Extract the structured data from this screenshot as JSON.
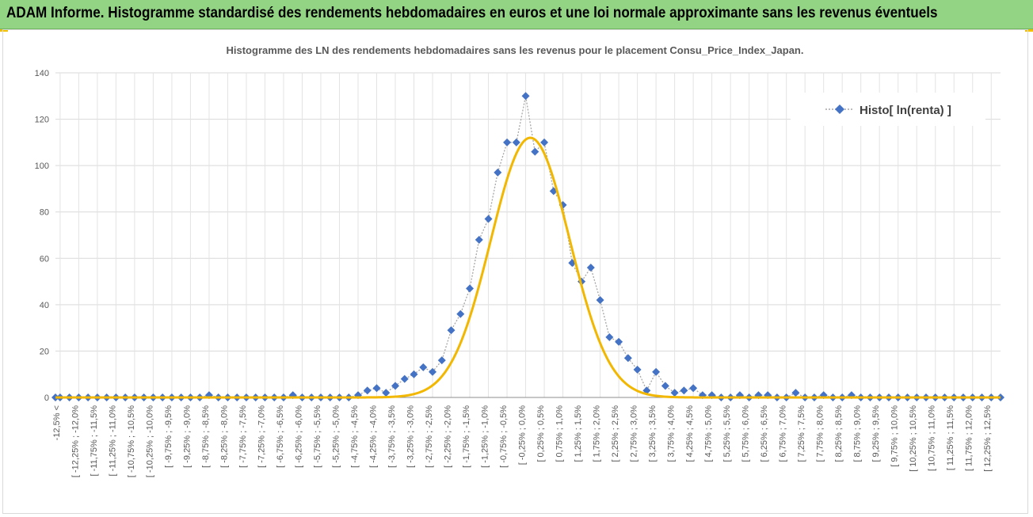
{
  "banner": {
    "title": "ADAM Informe. Histogramme standardisé des rendements hebdomadaires en euros et une loi normale approximante sans les revenus éventuels"
  },
  "chart_data": {
    "type": "scatter",
    "title": "Histogramme des LN des rendements hebdomadaires sans les revenus pour le placement Consu_Price_Index_Japan.",
    "ylim": [
      0,
      140
    ],
    "yticks": [
      0,
      20,
      40,
      60,
      80,
      100,
      120,
      140
    ],
    "grid": true,
    "legend_position": "top-right",
    "categories": [
      "-12,5% <",
      "[ -12,25% ; -12,0%",
      "[ -11,75% ; -11,5%",
      "[ -11,25% ; -11,0%",
      "[ -10,75% ; -10,5%",
      "[ -10,25% ; -10,0%",
      "[ -9,75% ; -9,5%",
      "[ -9,25% ; -9,0%",
      "[ -8,75% ; -8,5%",
      "[ -8,25% ; -8,0%",
      "[ -7,75% ; -7,5%",
      "[ -7,25% ; -7,0%",
      "[ -6,75% ; -6,5%",
      "[ -6,25% ; -6,0%",
      "[ -5,75% ; -5,5%",
      "[ -5,25% ; -5,0%",
      "[ -4,75% ; -4,5%",
      "[ -4,25% ; -4,0%",
      "[ -3,75% ; -3,5%",
      "[ -3,25% ; -3,0%",
      "[ -2,75% ; -2,5%",
      "[ -2,25% ; -2,0%",
      "[ -1,75% ; -1,5%",
      "[ -1,25% ; -1,0%",
      "[ -0,75% ; -0,5%",
      "[ -0,25% ; 0,0%",
      "[ 0,25% ; 0,5%",
      "[ 0,75% ; 1,0%",
      "[ 1,25% ; 1,5%",
      "[ 1,75% ; 2,0%",
      "[ 2,25% ; 2,5%",
      "[ 2,75% ; 3,0%",
      "[ 3,25% ; 3,5%",
      "[ 3,75% ; 4,0%",
      "[ 4,25% ; 4,5%",
      "[ 4,75% ; 5,0%",
      "[ 5,25% ; 5,5%",
      "[ 5,75% ; 6,0%",
      "[ 6,25% ; 6,5%",
      "[ 6,75% ; 7,0%",
      "[ 7,25% ; 7,5%",
      "[ 7,75% ; 8,0%",
      "[ 8,25% ; 8,5%",
      "[ 8,75% ; 9,0%",
      "[ 9,25% ; 9,5%",
      "[ 9,75% ; 10,0%",
      "[ 10,25% ; 10,5%",
      "[ 10,75% ; 11,0%",
      "[ 11,25% ; 11,5%",
      "[ 11,75% ; 12,0%",
      "[ 12,25% ; 12,5%"
    ],
    "histo": {
      "name": "Histo[ ln(renta) ]",
      "color": "#4472c4",
      "x": [
        -12.625,
        -12.5,
        -12.25,
        -12,
        -11.75,
        -11.5,
        -11.25,
        -11,
        -10.75,
        -10.5,
        -10.25,
        -10,
        -9.75,
        -9.5,
        -9.25,
        -9,
        -8.75,
        -8.5,
        -8.25,
        -8,
        -7.75,
        -7.5,
        -7.25,
        -7,
        -6.75,
        -6.5,
        -6.25,
        -6,
        -5.75,
        -5.5,
        -5.25,
        -5,
        -4.75,
        -4.5,
        -4.25,
        -4,
        -3.75,
        -3.5,
        -3.25,
        -3,
        -2.75,
        -2.5,
        -2.25,
        -2,
        -1.75,
        -1.5,
        -1.25,
        -1,
        -0.75,
        -0.5,
        -0.25,
        0,
        0.25,
        0.5,
        0.75,
        1,
        1.25,
        1.5,
        1.75,
        2,
        2.25,
        2.5,
        2.75,
        3,
        3.25,
        3.5,
        3.75,
        4,
        4.25,
        4.5,
        4.75,
        5,
        5.25,
        5.5,
        5.75,
        6,
        6.25,
        6.5,
        6.75,
        7,
        7.25,
        7.5,
        7.75,
        8,
        8.25,
        8.5,
        8.75,
        9,
        9.25,
        9.5,
        9.75,
        10,
        10.25,
        10.5,
        10.75,
        11,
        11.25,
        11.5,
        11.75,
        12,
        12.25,
        12.5,
        12.75
      ],
      "values": [
        0,
        0,
        0,
        0,
        0,
        0,
        0,
        0,
        0,
        0,
        0,
        0,
        0,
        0,
        0,
        0,
        0,
        1,
        0,
        0,
        0,
        0,
        0,
        0,
        0,
        0,
        1,
        0,
        0,
        0,
        0,
        0,
        0,
        1,
        3,
        4,
        2,
        5,
        8,
        10,
        13,
        11,
        16,
        29,
        36,
        47,
        68,
        77,
        97,
        110,
        110,
        130,
        106,
        110,
        89,
        83,
        58,
        50,
        56,
        42,
        26,
        24,
        17,
        12,
        3,
        11,
        5,
        2,
        3,
        4,
        1,
        1,
        0,
        0,
        1,
        0,
        1,
        1,
        0,
        0,
        2,
        0,
        0,
        1,
        0,
        0,
        1,
        0,
        0,
        0,
        0,
        0,
        0,
        0,
        0,
        0,
        0,
        0,
        0,
        0,
        0,
        0,
        0
      ]
    },
    "normal_curve": {
      "color": "#f2b700",
      "peak": 112,
      "mean": 0.125,
      "sd": 1.06
    }
  }
}
